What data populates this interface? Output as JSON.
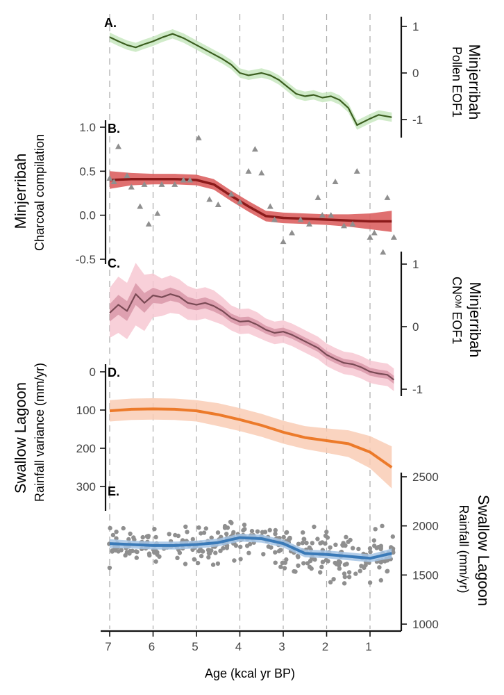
{
  "chart_data": {
    "type": "line",
    "xlabel": "Age (kcal yr BP)",
    "xticks": [
      7,
      6,
      5,
      4,
      3,
      2,
      1
    ],
    "xlim": [
      7.1,
      0.4
    ],
    "panels": [
      {
        "label": "A.",
        "title": "Minjerribah",
        "ylabel": "Pollen EOF1",
        "yticks": [
          1,
          0,
          -1
        ],
        "ylim": [
          -1.4,
          1.2
        ],
        "color": "#3b5e1f",
        "band_color": "#c8e8c0",
        "series": [
          {
            "x": 7.0,
            "y": 0.77,
            "ci": 0.1
          },
          {
            "x": 6.8,
            "y": 0.68,
            "ci": 0.1
          },
          {
            "x": 6.6,
            "y": 0.6,
            "ci": 0.1
          },
          {
            "x": 6.4,
            "y": 0.55,
            "ci": 0.1
          },
          {
            "x": 6.2,
            "y": 0.62,
            "ci": 0.1
          },
          {
            "x": 6.0,
            "y": 0.68,
            "ci": 0.1
          },
          {
            "x": 5.8,
            "y": 0.76,
            "ci": 0.1
          },
          {
            "x": 5.55,
            "y": 0.84,
            "ci": 0.1
          },
          {
            "x": 5.3,
            "y": 0.75,
            "ci": 0.1
          },
          {
            "x": 5.0,
            "y": 0.6,
            "ci": 0.1
          },
          {
            "x": 4.7,
            "y": 0.45,
            "ci": 0.1
          },
          {
            "x": 4.4,
            "y": 0.3,
            "ci": 0.1
          },
          {
            "x": 4.2,
            "y": 0.18,
            "ci": 0.1
          },
          {
            "x": 4.0,
            "y": 0.0,
            "ci": 0.1
          },
          {
            "x": 3.8,
            "y": -0.05,
            "ci": 0.1
          },
          {
            "x": 3.5,
            "y": 0.0,
            "ci": 0.1
          },
          {
            "x": 3.3,
            "y": -0.05,
            "ci": 0.1
          },
          {
            "x": 3.1,
            "y": -0.15,
            "ci": 0.1
          },
          {
            "x": 2.9,
            "y": -0.3,
            "ci": 0.1
          },
          {
            "x": 2.7,
            "y": -0.45,
            "ci": 0.1
          },
          {
            "x": 2.5,
            "y": -0.5,
            "ci": 0.1
          },
          {
            "x": 2.3,
            "y": -0.47,
            "ci": 0.1
          },
          {
            "x": 2.1,
            "y": -0.53,
            "ci": 0.1
          },
          {
            "x": 1.9,
            "y": -0.5,
            "ci": 0.1
          },
          {
            "x": 1.7,
            "y": -0.58,
            "ci": 0.1
          },
          {
            "x": 1.5,
            "y": -0.75,
            "ci": 0.1
          },
          {
            "x": 1.3,
            "y": -1.12,
            "ci": 0.1
          },
          {
            "x": 1.0,
            "y": -0.98,
            "ci": 0.1
          },
          {
            "x": 0.8,
            "y": -0.9,
            "ci": 0.1
          },
          {
            "x": 0.5,
            "y": -0.95,
            "ci": 0.1
          }
        ]
      },
      {
        "label": "B.",
        "title": "Minjerribah",
        "ylabel": "Charcoal compilation",
        "yticks": [
          1.0,
          0.5,
          0.0,
          -0.5
        ],
        "ytick_labels": [
          "1.0",
          "0.5",
          "0.0",
          "-0.5"
        ],
        "ylim": [
          -0.55,
          1.05
        ],
        "color": "#8b1a1a",
        "band_color": "#dc6060",
        "series": [
          {
            "x": 7.0,
            "y": 0.4,
            "ci": 0.1
          },
          {
            "x": 6.5,
            "y": 0.41,
            "ci": 0.07
          },
          {
            "x": 6.0,
            "y": 0.41,
            "ci": 0.06
          },
          {
            "x": 5.5,
            "y": 0.41,
            "ci": 0.06
          },
          {
            "x": 5.0,
            "y": 0.4,
            "ci": 0.06
          },
          {
            "x": 4.6,
            "y": 0.35,
            "ci": 0.06
          },
          {
            "x": 4.2,
            "y": 0.22,
            "ci": 0.06
          },
          {
            "x": 3.8,
            "y": 0.1,
            "ci": 0.06
          },
          {
            "x": 3.4,
            "y": -0.01,
            "ci": 0.06
          },
          {
            "x": 3.0,
            "y": -0.03,
            "ci": 0.06
          },
          {
            "x": 2.5,
            "y": -0.04,
            "ci": 0.06
          },
          {
            "x": 2.0,
            "y": -0.05,
            "ci": 0.06
          },
          {
            "x": 1.5,
            "y": -0.06,
            "ci": 0.07
          },
          {
            "x": 1.0,
            "y": -0.07,
            "ci": 0.09
          },
          {
            "x": 0.5,
            "y": -0.07,
            "ci": 0.12
          }
        ],
        "points": [
          [
            7.0,
            0.42
          ],
          [
            6.9,
            0.38
          ],
          [
            6.8,
            0.78
          ],
          [
            6.6,
            0.45
          ],
          [
            6.5,
            0.32
          ],
          [
            6.3,
            0.1
          ],
          [
            6.2,
            0.35
          ],
          [
            6.1,
            -0.1
          ],
          [
            5.9,
            0.02
          ],
          [
            5.8,
            0.35
          ],
          [
            5.5,
            0.35
          ],
          [
            5.3,
            0.4
          ],
          [
            5.15,
            0.4
          ],
          [
            4.95,
            0.88
          ],
          [
            4.7,
            0.18
          ],
          [
            4.5,
            0.12
          ],
          [
            4.2,
            0.24
          ],
          [
            4.0,
            0.15
          ],
          [
            3.8,
            0.5
          ],
          [
            3.65,
            0.75
          ],
          [
            3.5,
            0.48
          ],
          [
            3.3,
            0.1
          ],
          [
            3.2,
            -0.05
          ],
          [
            3.0,
            -0.3
          ],
          [
            2.8,
            -0.2
          ],
          [
            2.6,
            -0.05
          ],
          [
            2.4,
            -0.1
          ],
          [
            2.2,
            0.2
          ],
          [
            2.1,
            0.0
          ],
          [
            1.9,
            0.0
          ],
          [
            1.8,
            0.38
          ],
          [
            1.6,
            -0.12
          ],
          [
            1.4,
            -0.1
          ],
          [
            1.3,
            0.5
          ],
          [
            1.0,
            -0.25
          ],
          [
            0.9,
            -0.2
          ],
          [
            0.7,
            -0.42
          ],
          [
            0.6,
            0.2
          ],
          [
            0.45,
            -0.25
          ]
        ]
      },
      {
        "label": "C.",
        "title": "Minjerribah",
        "ylabel_parts": [
          "CN",
          "OM",
          " EOF1"
        ],
        "yticks": [
          1,
          0,
          -1
        ],
        "ylim": [
          -1.1,
          1.2
        ],
        "color": "#7a4a55",
        "band_color": "#f7c8d2",
        "inner_band_color": "#d998a8",
        "series": [
          {
            "x": 7.0,
            "y": 0.22,
            "ci": 0.4
          },
          {
            "x": 6.8,
            "y": 0.35,
            "ci": 0.45
          },
          {
            "x": 6.6,
            "y": 0.25,
            "ci": 0.45
          },
          {
            "x": 6.4,
            "y": 0.52,
            "ci": 0.5
          },
          {
            "x": 6.2,
            "y": 0.38,
            "ci": 0.45
          },
          {
            "x": 6.0,
            "y": 0.5,
            "ci": 0.35
          },
          {
            "x": 5.8,
            "y": 0.47,
            "ci": 0.3
          },
          {
            "x": 5.6,
            "y": 0.52,
            "ci": 0.3
          },
          {
            "x": 5.4,
            "y": 0.48,
            "ci": 0.28
          },
          {
            "x": 5.2,
            "y": 0.38,
            "ci": 0.27
          },
          {
            "x": 5.0,
            "y": 0.35,
            "ci": 0.25
          },
          {
            "x": 4.8,
            "y": 0.38,
            "ci": 0.25
          },
          {
            "x": 4.6,
            "y": 0.33,
            "ci": 0.25
          },
          {
            "x": 4.4,
            "y": 0.25,
            "ci": 0.22
          },
          {
            "x": 4.2,
            "y": 0.14,
            "ci": 0.2
          },
          {
            "x": 4.0,
            "y": 0.08,
            "ci": 0.2
          },
          {
            "x": 3.8,
            "y": 0.09,
            "ci": 0.2
          },
          {
            "x": 3.6,
            "y": 0.03,
            "ci": 0.2
          },
          {
            "x": 3.4,
            "y": -0.05,
            "ci": 0.18
          },
          {
            "x": 3.2,
            "y": -0.1,
            "ci": 0.18
          },
          {
            "x": 3.0,
            "y": -0.08,
            "ci": 0.18
          },
          {
            "x": 2.8,
            "y": -0.13,
            "ci": 0.18
          },
          {
            "x": 2.6,
            "y": -0.2,
            "ci": 0.18
          },
          {
            "x": 2.4,
            "y": -0.27,
            "ci": 0.18
          },
          {
            "x": 2.2,
            "y": -0.34,
            "ci": 0.18
          },
          {
            "x": 2.0,
            "y": -0.45,
            "ci": 0.18
          },
          {
            "x": 1.8,
            "y": -0.52,
            "ci": 0.18
          },
          {
            "x": 1.6,
            "y": -0.58,
            "ci": 0.18
          },
          {
            "x": 1.4,
            "y": -0.6,
            "ci": 0.18
          },
          {
            "x": 1.2,
            "y": -0.65,
            "ci": 0.18
          },
          {
            "x": 1.0,
            "y": -0.72,
            "ci": 0.18
          },
          {
            "x": 0.8,
            "y": -0.75,
            "ci": 0.18
          },
          {
            "x": 0.6,
            "y": -0.77,
            "ci": 0.18
          },
          {
            "x": 0.45,
            "y": -0.85,
            "ci": 0.18
          }
        ]
      },
      {
        "label": "D.",
        "title": "Swallow Lagoon",
        "ylabel": "Rainfall variance (mm/yr)",
        "yticks": [
          0,
          100,
          200,
          300
        ],
        "ylim": [
          -5,
          355
        ],
        "inverted": true,
        "color": "#ec7a2a",
        "band_color": "#f9cdb5",
        "series": [
          {
            "x": 7.0,
            "y": 102,
            "ci": 28
          },
          {
            "x": 6.5,
            "y": 98,
            "ci": 28
          },
          {
            "x": 6.0,
            "y": 97,
            "ci": 28
          },
          {
            "x": 5.5,
            "y": 98,
            "ci": 28
          },
          {
            "x": 5.0,
            "y": 102,
            "ci": 28
          },
          {
            "x": 4.5,
            "y": 112,
            "ci": 30
          },
          {
            "x": 4.0,
            "y": 125,
            "ci": 30
          },
          {
            "x": 3.5,
            "y": 140,
            "ci": 30
          },
          {
            "x": 3.0,
            "y": 158,
            "ci": 30
          },
          {
            "x": 2.5,
            "y": 172,
            "ci": 30
          },
          {
            "x": 2.0,
            "y": 180,
            "ci": 32
          },
          {
            "x": 1.5,
            "y": 188,
            "ci": 35
          },
          {
            "x": 1.0,
            "y": 210,
            "ci": 42
          },
          {
            "x": 0.5,
            "y": 250,
            "ci": 55
          }
        ]
      },
      {
        "label": "E.",
        "title": "Swallow Lagoon",
        "ylabel": "Rainfall (mm/yr)",
        "yticks": [
          2500,
          2000,
          1500,
          1000
        ],
        "ylim": [
          950,
          2550
        ],
        "color": "#3a7ab8",
        "band_color": "#a6c4e4",
        "series": [
          {
            "x": 7.0,
            "y": 1820,
            "ci": 45
          },
          {
            "x": 6.5,
            "y": 1810,
            "ci": 40
          },
          {
            "x": 6.0,
            "y": 1800,
            "ci": 40
          },
          {
            "x": 5.5,
            "y": 1800,
            "ci": 40
          },
          {
            "x": 5.0,
            "y": 1810,
            "ci": 40
          },
          {
            "x": 4.5,
            "y": 1830,
            "ci": 40
          },
          {
            "x": 4.0,
            "y": 1880,
            "ci": 40
          },
          {
            "x": 3.5,
            "y": 1870,
            "ci": 40
          },
          {
            "x": 3.0,
            "y": 1820,
            "ci": 40
          },
          {
            "x": 2.5,
            "y": 1720,
            "ci": 40
          },
          {
            "x": 2.0,
            "y": 1710,
            "ci": 40
          },
          {
            "x": 1.5,
            "y": 1690,
            "ci": 40
          },
          {
            "x": 1.0,
            "y": 1670,
            "ci": 40
          },
          {
            "x": 0.5,
            "y": 1720,
            "ci": 50
          }
        ],
        "points_seed": 7,
        "points_count": 330
      }
    ]
  }
}
